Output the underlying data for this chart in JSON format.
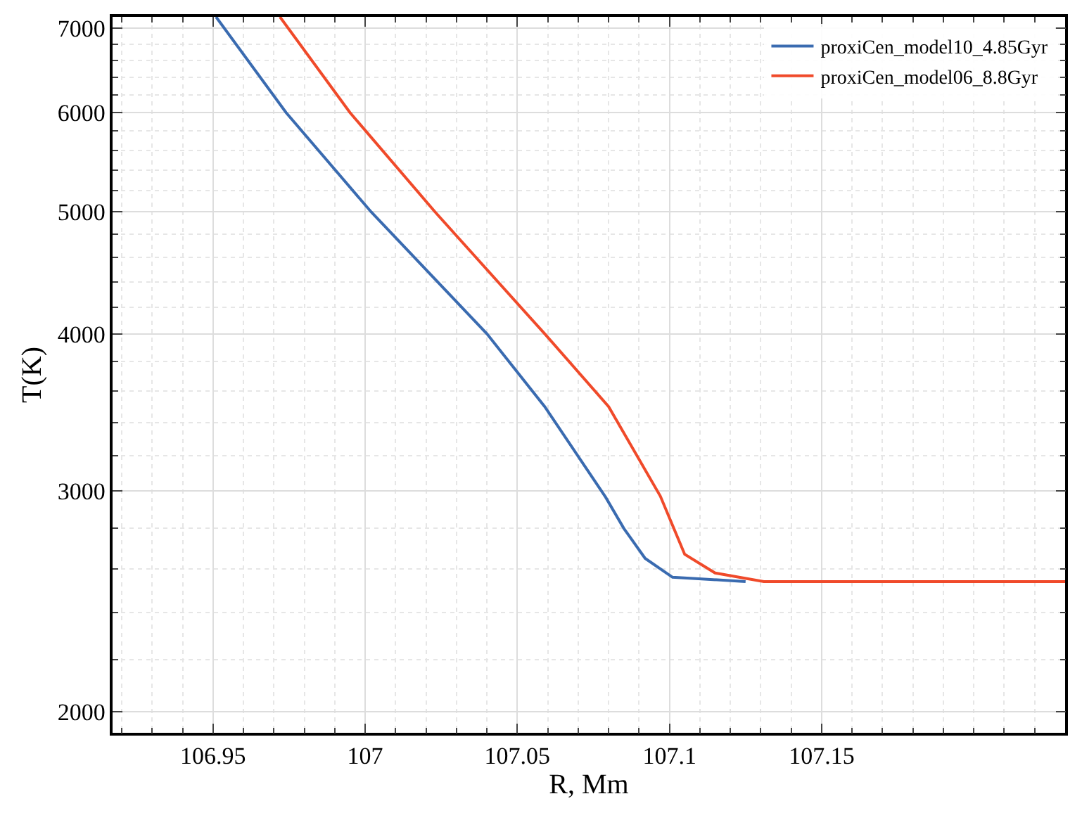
{
  "chart_data": {
    "type": "line",
    "xlabel": "R, Mm",
    "ylabel": "T(K)",
    "log": "y",
    "grid": true,
    "legend": "top right",
    "line_style": "solid",
    "marker": "none",
    "xlim": [
      106.917,
      107.23
    ],
    "xticks": [
      106.95,
      107,
      107.05,
      107.1,
      107.15
    ],
    "ylim": [
      1925,
      7150
    ],
    "yticks": [
      2000,
      3000,
      4000,
      5000,
      6000,
      7000
    ],
    "series": [
      {
        "name": "proxiCen_model10_4.85Gyr",
        "color": "#3a6bb0",
        "x": [
          106.951,
          106.974,
          107.002,
          107.04,
          107.059,
          107.079,
          107.085,
          107.092,
          107.101,
          107.125
        ],
        "values": [
          7150,
          6000,
          5000,
          4000,
          3500,
          2965,
          2800,
          2650,
          2560,
          2540
        ]
      },
      {
        "name": "proxiCen_model06_8.8Gyr",
        "color": "#f04a2a",
        "x": [
          106.972,
          106.995,
          107.023,
          107.059,
          107.08,
          107.097,
          107.105,
          107.115,
          107.131,
          107.23
        ],
        "values": [
          7150,
          6000,
          5000,
          4000,
          3500,
          2970,
          2670,
          2580,
          2540,
          2540
        ]
      }
    ]
  }
}
